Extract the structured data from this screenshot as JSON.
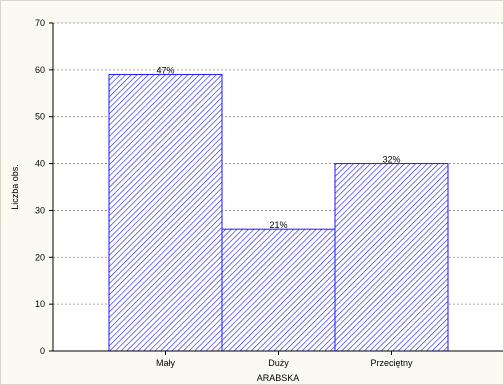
{
  "chart_data": {
    "type": "bar",
    "categories": [
      "Mały",
      "Duży",
      "Przeciętny"
    ],
    "values": [
      59,
      26,
      40
    ],
    "data_labels": [
      "47%",
      "21%",
      "32%"
    ],
    "title": "",
    "xlabel": "ARABSKA",
    "ylabel": "Liczba obs.",
    "ylim": [
      0,
      70
    ],
    "yticks": [
      0,
      10,
      20,
      30,
      40,
      50,
      60,
      70
    ],
    "grid": true,
    "legend": "none",
    "bar_fill": "hatched",
    "colors": {
      "bar_stroke": "#1a1aff",
      "bar_hatch": "#1a1aff",
      "bar_bg": "#ffffff",
      "grid": "#8a8a8a",
      "axis": "#000000",
      "plot_bg": "#ffffff"
    }
  }
}
